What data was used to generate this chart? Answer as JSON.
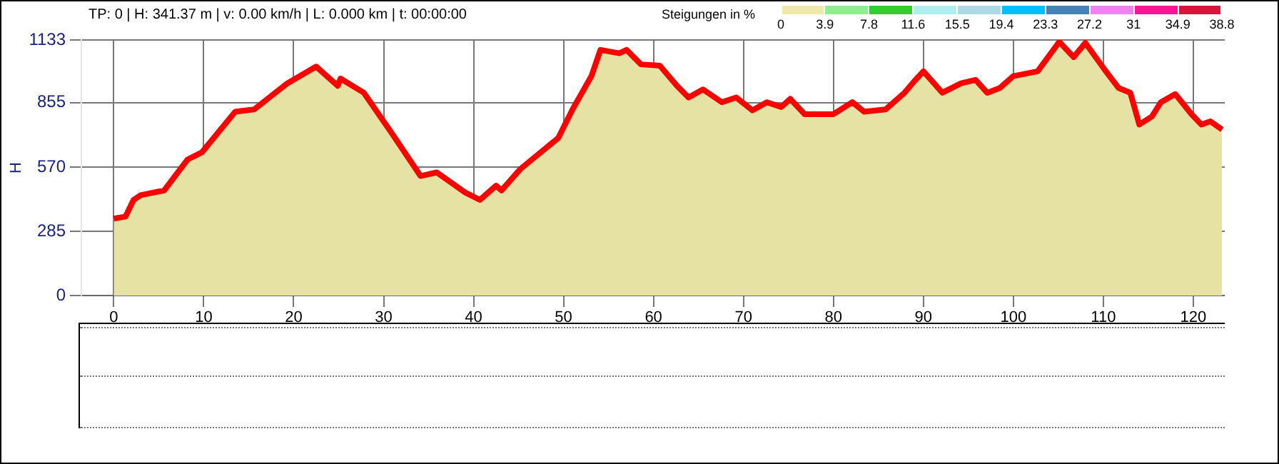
{
  "chart_data": {
    "type": "area",
    "subtitle": "TP: 0 | H: 341.37 m | v: 0.00 km/h | L: 0.000 km | t: 00:00:00",
    "ylabel": "H",
    "clabel": "Steigungen in %",
    "annotations": [
      "0",
      "3.9",
      "7.8",
      "11.6",
      "15.5",
      "19.4",
      "23.3",
      "27.2",
      "31",
      "34.9",
      "38.8"
    ],
    "xlim": [
      -3.6,
      123.5
    ],
    "xticks": [
      0,
      10,
      20,
      30,
      40,
      50,
      60,
      70,
      80,
      90,
      100,
      110,
      120
    ],
    "ylim": [
      0,
      1133
    ],
    "yticks": [
      0,
      285,
      570,
      855,
      1133
    ],
    "grid": true,
    "legend": false,
    "series": [
      {
        "color": "#ff0000",
        "x": [
          0,
          1.3,
          2.2,
          3.0,
          5.6,
          6.4,
          8.2,
          9.8,
          13.5,
          15.6,
          19.3,
          22.5,
          24.9,
          25.2,
          27.8,
          30.9,
          34.1,
          35.9,
          39.1,
          40.7,
          42.5,
          43.1,
          45.2,
          47.8,
          49.4,
          51,
          53.1,
          54.1,
          56.2,
          57.0,
          58.6,
          60.7,
          62.6,
          63.9,
          65.5,
          67.6,
          69.2,
          71.0,
          72.6,
          74.2,
          75.2,
          76.8,
          80.0,
          82.1,
          83.4,
          85.8,
          87.9,
          89.0,
          90.0,
          92.1,
          94.2,
          95.8,
          97.1,
          98.5,
          100.0,
          102.7,
          105.1,
          106.7,
          108.0,
          110.1,
          111.7,
          113.0,
          114.0,
          115.4,
          116.4,
          118.0,
          119.8,
          120.9,
          121.9,
          123.2
        ],
        "values": [
          341,
          350,
          424,
          445,
          466,
          508,
          603,
          635,
          815,
          825,
          941,
          1015,
          930,
          962,
          899,
          720,
          530,
          546,
          456,
          424,
          487,
          466,
          561,
          646,
          698,
          825,
          973,
          1089,
          1074,
          1089,
          1025,
          1019,
          930,
          878,
          914,
          857,
          878,
          821,
          857,
          836,
          872,
          804,
          804,
          857,
          815,
          825,
          899,
          951,
          994,
          899,
          941,
          956,
          899,
          920,
          973,
          994,
          1125,
          1057,
          1120,
          1004,
          920,
          899,
          758,
          794,
          857,
          893,
          804,
          758,
          772,
          736
        ]
      }
    ]
  }
}
